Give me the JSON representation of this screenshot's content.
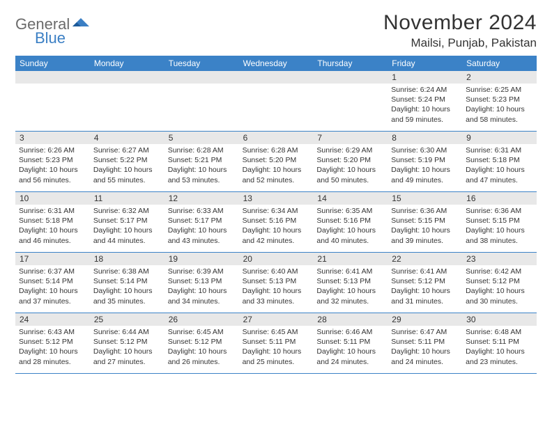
{
  "brand": {
    "text1": "General",
    "text2": "Blue"
  },
  "title": "November 2024",
  "location": "Mailsi, Punjab, Pakistan",
  "colors": {
    "header_blue": "#3b82c7",
    "daynum_bg": "#e8e8e8",
    "text": "#333333",
    "logo_gray": "#6b6b6b",
    "logo_blue": "#3b7fc4"
  },
  "weekdays": [
    "Sunday",
    "Monday",
    "Tuesday",
    "Wednesday",
    "Thursday",
    "Friday",
    "Saturday"
  ],
  "weeks": [
    [
      {
        "blank": true
      },
      {
        "blank": true
      },
      {
        "blank": true
      },
      {
        "blank": true
      },
      {
        "blank": true
      },
      {
        "day": "1",
        "sunrise": "6:24 AM",
        "sunset": "5:24 PM",
        "daylight": "10 hours and 59 minutes."
      },
      {
        "day": "2",
        "sunrise": "6:25 AM",
        "sunset": "5:23 PM",
        "daylight": "10 hours and 58 minutes."
      }
    ],
    [
      {
        "day": "3",
        "sunrise": "6:26 AM",
        "sunset": "5:23 PM",
        "daylight": "10 hours and 56 minutes."
      },
      {
        "day": "4",
        "sunrise": "6:27 AM",
        "sunset": "5:22 PM",
        "daylight": "10 hours and 55 minutes."
      },
      {
        "day": "5",
        "sunrise": "6:28 AM",
        "sunset": "5:21 PM",
        "daylight": "10 hours and 53 minutes."
      },
      {
        "day": "6",
        "sunrise": "6:28 AM",
        "sunset": "5:20 PM",
        "daylight": "10 hours and 52 minutes."
      },
      {
        "day": "7",
        "sunrise": "6:29 AM",
        "sunset": "5:20 PM",
        "daylight": "10 hours and 50 minutes."
      },
      {
        "day": "8",
        "sunrise": "6:30 AM",
        "sunset": "5:19 PM",
        "daylight": "10 hours and 49 minutes."
      },
      {
        "day": "9",
        "sunrise": "6:31 AM",
        "sunset": "5:18 PM",
        "daylight": "10 hours and 47 minutes."
      }
    ],
    [
      {
        "day": "10",
        "sunrise": "6:31 AM",
        "sunset": "5:18 PM",
        "daylight": "10 hours and 46 minutes."
      },
      {
        "day": "11",
        "sunrise": "6:32 AM",
        "sunset": "5:17 PM",
        "daylight": "10 hours and 44 minutes."
      },
      {
        "day": "12",
        "sunrise": "6:33 AM",
        "sunset": "5:17 PM",
        "daylight": "10 hours and 43 minutes."
      },
      {
        "day": "13",
        "sunrise": "6:34 AM",
        "sunset": "5:16 PM",
        "daylight": "10 hours and 42 minutes."
      },
      {
        "day": "14",
        "sunrise": "6:35 AM",
        "sunset": "5:16 PM",
        "daylight": "10 hours and 40 minutes."
      },
      {
        "day": "15",
        "sunrise": "6:36 AM",
        "sunset": "5:15 PM",
        "daylight": "10 hours and 39 minutes."
      },
      {
        "day": "16",
        "sunrise": "6:36 AM",
        "sunset": "5:15 PM",
        "daylight": "10 hours and 38 minutes."
      }
    ],
    [
      {
        "day": "17",
        "sunrise": "6:37 AM",
        "sunset": "5:14 PM",
        "daylight": "10 hours and 37 minutes."
      },
      {
        "day": "18",
        "sunrise": "6:38 AM",
        "sunset": "5:14 PM",
        "daylight": "10 hours and 35 minutes."
      },
      {
        "day": "19",
        "sunrise": "6:39 AM",
        "sunset": "5:13 PM",
        "daylight": "10 hours and 34 minutes."
      },
      {
        "day": "20",
        "sunrise": "6:40 AM",
        "sunset": "5:13 PM",
        "daylight": "10 hours and 33 minutes."
      },
      {
        "day": "21",
        "sunrise": "6:41 AM",
        "sunset": "5:13 PM",
        "daylight": "10 hours and 32 minutes."
      },
      {
        "day": "22",
        "sunrise": "6:41 AM",
        "sunset": "5:12 PM",
        "daylight": "10 hours and 31 minutes."
      },
      {
        "day": "23",
        "sunrise": "6:42 AM",
        "sunset": "5:12 PM",
        "daylight": "10 hours and 30 minutes."
      }
    ],
    [
      {
        "day": "24",
        "sunrise": "6:43 AM",
        "sunset": "5:12 PM",
        "daylight": "10 hours and 28 minutes."
      },
      {
        "day": "25",
        "sunrise": "6:44 AM",
        "sunset": "5:12 PM",
        "daylight": "10 hours and 27 minutes."
      },
      {
        "day": "26",
        "sunrise": "6:45 AM",
        "sunset": "5:12 PM",
        "daylight": "10 hours and 26 minutes."
      },
      {
        "day": "27",
        "sunrise": "6:45 AM",
        "sunset": "5:11 PM",
        "daylight": "10 hours and 25 minutes."
      },
      {
        "day": "28",
        "sunrise": "6:46 AM",
        "sunset": "5:11 PM",
        "daylight": "10 hours and 24 minutes."
      },
      {
        "day": "29",
        "sunrise": "6:47 AM",
        "sunset": "5:11 PM",
        "daylight": "10 hours and 24 minutes."
      },
      {
        "day": "30",
        "sunrise": "6:48 AM",
        "sunset": "5:11 PM",
        "daylight": "10 hours and 23 minutes."
      }
    ]
  ]
}
